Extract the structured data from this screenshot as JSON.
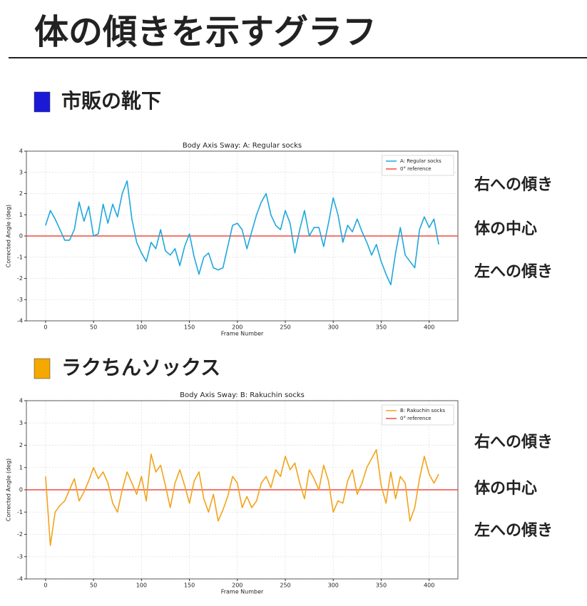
{
  "title": "体の傾きを示すグラフ",
  "sections": [
    {
      "label": "市販の靴下",
      "color": "#1a1ad6",
      "side_labels": [
        "右への傾き",
        "体の中心",
        "左への傾き"
      ]
    },
    {
      "label": "ラクちんソックス",
      "color": "#f5a800",
      "side_labels": [
        "右への傾き",
        "体の中心",
        "左への傾き"
      ]
    }
  ],
  "chart_data": [
    {
      "type": "line",
      "title": "Body Axis Sway: A: Regular socks",
      "xlabel": "Frame Number",
      "ylabel": "Corrected Angle (deg)",
      "x": [
        0,
        5,
        10,
        15,
        20,
        25,
        30,
        35,
        40,
        45,
        50,
        55,
        60,
        65,
        70,
        75,
        80,
        85,
        90,
        95,
        100,
        105,
        110,
        115,
        120,
        125,
        130,
        135,
        140,
        145,
        150,
        155,
        160,
        165,
        170,
        175,
        180,
        185,
        190,
        195,
        200,
        205,
        210,
        215,
        220,
        225,
        230,
        235,
        240,
        245,
        250,
        255,
        260,
        265,
        270,
        275,
        280,
        285,
        290,
        295,
        300,
        305,
        310,
        315,
        320,
        325,
        330,
        335,
        340,
        345,
        350,
        355,
        360,
        365,
        370,
        375,
        380,
        385,
        390,
        395,
        400,
        405,
        410
      ],
      "series": [
        {
          "name": "A: Regular socks",
          "color": "#1fa7dd",
          "values": [
            0.5,
            1.2,
            0.8,
            0.3,
            -0.2,
            -0.2,
            0.3,
            1.6,
            0.7,
            1.4,
            0.0,
            0.1,
            1.5,
            0.6,
            1.5,
            0.9,
            2.0,
            2.6,
            0.8,
            -0.3,
            -0.8,
            -1.2,
            -0.3,
            -0.6,
            0.3,
            -0.7,
            -0.9,
            -0.6,
            -1.4,
            -0.5,
            0.1,
            -1.0,
            -1.8,
            -1.0,
            -0.8,
            -1.5,
            -1.6,
            -1.5,
            -0.5,
            0.5,
            0.6,
            0.3,
            -0.6,
            0.2,
            1.0,
            1.6,
            2.0,
            1.0,
            0.5,
            0.3,
            1.2,
            0.6,
            -0.8,
            0.3,
            1.2,
            0.0,
            0.4,
            0.4,
            -0.5,
            0.6,
            1.8,
            1.0,
            -0.3,
            0.5,
            0.2,
            0.8,
            0.2,
            -0.3,
            -0.9,
            -0.4,
            -1.2,
            -1.8,
            -2.3,
            -0.8,
            0.4,
            -0.9,
            -1.2,
            -1.5,
            0.3,
            0.9,
            0.4,
            0.8,
            -0.4
          ]
        }
      ],
      "reference": {
        "name": "0° reference",
        "value": 0,
        "color": "#f04a3e"
      },
      "xlim": [
        -20,
        430
      ],
      "ylim": [
        -4,
        4
      ],
      "xticks": [
        0,
        50,
        100,
        150,
        200,
        250,
        300,
        350,
        400
      ],
      "yticks": [
        -4,
        -3,
        -2,
        -1,
        0,
        1,
        2,
        3,
        4
      ],
      "grid": true,
      "legend": "upper right"
    },
    {
      "type": "line",
      "title": "Body Axis Sway: B: Rakuchin socks",
      "xlabel": "Frame Number",
      "ylabel": "Corrected Angle (deg)",
      "x": [
        0,
        5,
        10,
        15,
        20,
        25,
        30,
        35,
        40,
        45,
        50,
        55,
        60,
        65,
        70,
        75,
        80,
        85,
        90,
        95,
        100,
        105,
        110,
        115,
        120,
        125,
        130,
        135,
        140,
        145,
        150,
        155,
        160,
        165,
        170,
        175,
        180,
        185,
        190,
        195,
        200,
        205,
        210,
        215,
        220,
        225,
        230,
        235,
        240,
        245,
        250,
        255,
        260,
        265,
        270,
        275,
        280,
        285,
        290,
        295,
        300,
        305,
        310,
        315,
        320,
        325,
        330,
        335,
        340,
        345,
        350,
        355,
        360,
        365,
        370,
        375,
        380,
        385,
        390,
        395,
        400,
        405,
        410
      ],
      "series": [
        {
          "name": "B: Rakuchin socks",
          "color": "#f2a31a",
          "values": [
            0.6,
            -2.5,
            -1.0,
            -0.7,
            -0.5,
            0.0,
            0.5,
            -0.5,
            -0.1,
            0.4,
            1.0,
            0.5,
            0.8,
            0.3,
            -0.6,
            -1.0,
            0.0,
            0.8,
            0.3,
            -0.2,
            0.6,
            -0.5,
            1.6,
            0.8,
            1.1,
            0.2,
            -0.8,
            0.3,
            0.9,
            0.2,
            -0.6,
            0.4,
            0.8,
            -0.4,
            -1.0,
            -0.2,
            -1.4,
            -0.9,
            -0.3,
            0.6,
            0.3,
            -0.8,
            -0.3,
            -0.8,
            -0.5,
            0.3,
            0.6,
            0.1,
            0.9,
            0.6,
            1.5,
            0.9,
            1.2,
            0.3,
            -0.4,
            0.9,
            0.5,
            0.0,
            1.1,
            0.4,
            -1.0,
            -0.5,
            -0.6,
            0.4,
            0.9,
            -0.2,
            0.3,
            1.0,
            1.4,
            1.8,
            0.2,
            -0.6,
            0.8,
            -0.4,
            0.6,
            0.3,
            -1.4,
            -0.8,
            0.5,
            1.5,
            0.7,
            0.3,
            0.7
          ]
        }
      ],
      "reference": {
        "name": "0° reference",
        "value": 0,
        "color": "#f04a3e"
      },
      "xlim": [
        -20,
        430
      ],
      "ylim": [
        -4,
        4
      ],
      "xticks": [
        0,
        50,
        100,
        150,
        200,
        250,
        300,
        350,
        400
      ],
      "yticks": [
        -4,
        -3,
        -2,
        -1,
        0,
        1,
        2,
        3,
        4
      ],
      "grid": true,
      "legend": "upper right"
    }
  ]
}
